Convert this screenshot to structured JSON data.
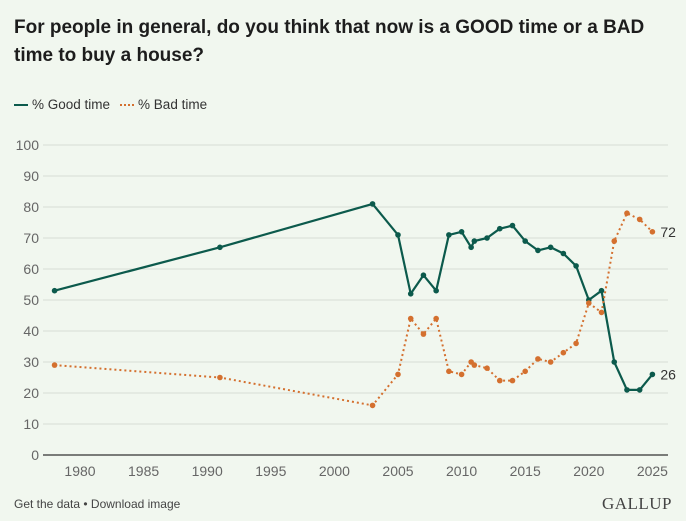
{
  "chart_data": {
    "type": "line",
    "title": "For people in general, do you think that now is a GOOD time or a BAD time to buy a house?",
    "xlabel": "",
    "ylabel": "",
    "ylim": [
      0,
      100
    ],
    "xlim": [
      1977,
      2026
    ],
    "yticks": [
      "0",
      "10",
      "20",
      "30",
      "40",
      "50",
      "60",
      "70",
      "80",
      "90",
      "100"
    ],
    "xticks": [
      "1980",
      "1985",
      "1990",
      "1995",
      "2000",
      "2005",
      "2010",
      "2015",
      "2020",
      "2025"
    ],
    "grid": true,
    "legend_position": "top-left",
    "x": [
      1978,
      1991,
      2003,
      2005,
      2006,
      2007,
      2008,
      2009,
      2010,
      2010.75,
      2011,
      2012,
      2013,
      2014,
      2015,
      2016,
      2017,
      2018,
      2019,
      2020,
      2021,
      2022,
      2023,
      2024,
      2025
    ],
    "series": [
      {
        "name": "% Good time",
        "color": "#0c5a4c",
        "style": "solid",
        "values": [
          53,
          67,
          81,
          71,
          52,
          58,
          53,
          71,
          72,
          67,
          69,
          70,
          73,
          74,
          69,
          66,
          67,
          65,
          61,
          50,
          53,
          30,
          21,
          21,
          26
        ],
        "end_label": "26"
      },
      {
        "name": "% Bad time",
        "color": "#d4702f",
        "style": "dotted",
        "values": [
          29,
          25,
          16,
          26,
          44,
          39,
          44,
          27,
          26,
          30,
          29,
          28,
          24,
          24,
          27,
          31,
          30,
          33,
          36,
          49,
          46,
          69,
          78,
          76,
          72
        ],
        "end_label": "72"
      }
    ]
  },
  "footer": {
    "get_data": "Get the data",
    "separator": " • ",
    "download": "Download image"
  },
  "logo": "GALLUP"
}
